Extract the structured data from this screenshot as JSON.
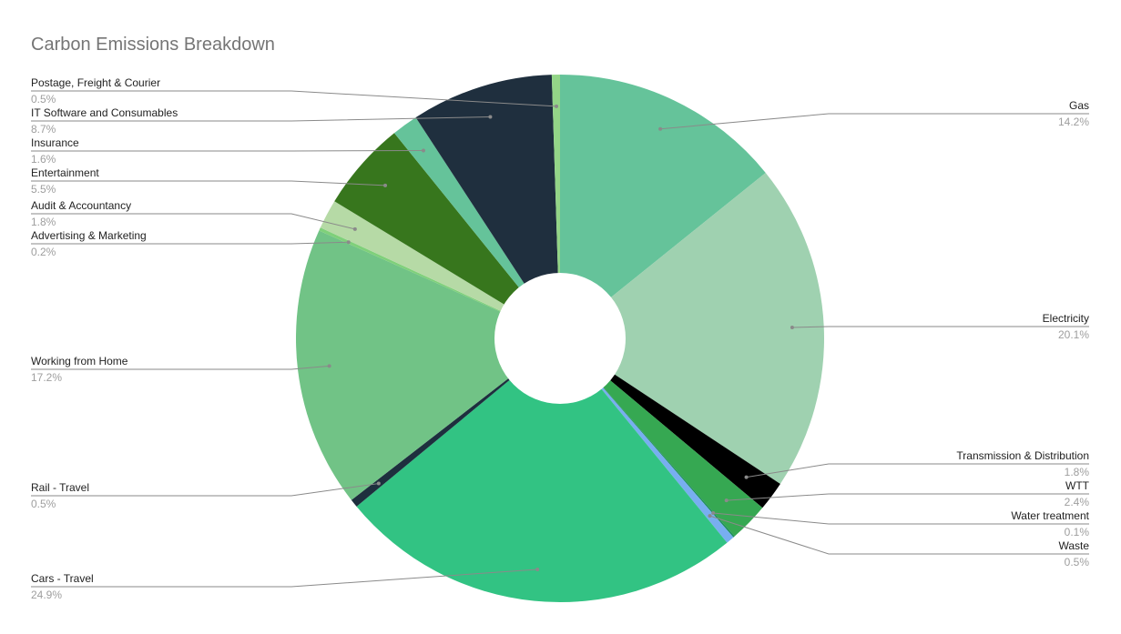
{
  "chart_data": {
    "type": "pie",
    "donut": true,
    "title": "Carbon Emissions Breakdown",
    "slices": [
      {
        "label": "Gas",
        "value": 14.2,
        "pct_label": "14.2%",
        "color": "#65c39a"
      },
      {
        "label": "Electricity",
        "value": 20.1,
        "pct_label": "20.1%",
        "color": "#9fd1b0"
      },
      {
        "label": "Transmission & Distribution",
        "value": 1.8,
        "pct_label": "1.8%",
        "color": "#000000"
      },
      {
        "label": "WTT",
        "value": 2.4,
        "pct_label": "2.4%",
        "color": "#36a852"
      },
      {
        "label": "Water treatment",
        "value": 0.1,
        "pct_label": "0.1%",
        "color": "#1e8f5a"
      },
      {
        "label": "Waste",
        "value": 0.5,
        "pct_label": "0.5%",
        "color": "#78aef0"
      },
      {
        "label": "Cars - Travel",
        "value": 24.9,
        "pct_label": "24.9%",
        "color": "#32c383"
      },
      {
        "label": "Rail - Travel",
        "value": 0.5,
        "pct_label": "0.5%",
        "color": "#1e2f3e"
      },
      {
        "label": "Working from Home",
        "value": 17.2,
        "pct_label": "17.2%",
        "color": "#71c386"
      },
      {
        "label": "Advertising & Marketing",
        "value": 0.2,
        "pct_label": "0.2%",
        "color": "#7fd07a"
      },
      {
        "label": "Audit & Accountancy",
        "value": 1.8,
        "pct_label": "1.8%",
        "color": "#b6daa6"
      },
      {
        "label": "Entertainment",
        "value": 5.5,
        "pct_label": "5.5%",
        "color": "#37761d"
      },
      {
        "label": "Insurance",
        "value": 1.6,
        "pct_label": "1.6%",
        "color": "#65c39a"
      },
      {
        "label": "IT Software and Consumables",
        "value": 8.7,
        "pct_label": "8.7%",
        "color": "#1f2f3e"
      },
      {
        "label": "Postage, Freight & Courier",
        "value": 0.5,
        "pct_label": "0.5%",
        "color": "#93d587"
      }
    ]
  }
}
